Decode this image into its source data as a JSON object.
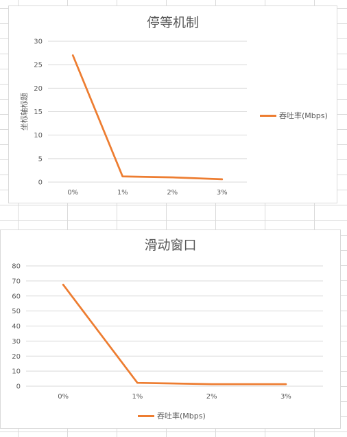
{
  "colors": {
    "series": "#ED7D31",
    "grid": "#d9d9d9",
    "text": "#595959"
  },
  "chart_data": [
    {
      "type": "line",
      "title": "停等机制",
      "ylabel": "坐标轴标题",
      "categories": [
        "0%",
        "1%",
        "2%",
        "3%"
      ],
      "yticks": [
        0,
        5,
        10,
        15,
        20,
        25,
        30
      ],
      "ylim": [
        0,
        30
      ],
      "grid": true,
      "legend_position": "right",
      "series": [
        {
          "name": "吞吐率(Mbps)",
          "values": [
            27,
            1.2,
            1.0,
            0.6
          ]
        }
      ]
    },
    {
      "type": "line",
      "title": "滑动窗口",
      "ylabel": "",
      "categories": [
        "0%",
        "1%",
        "2%",
        "3%"
      ],
      "yticks": [
        0,
        10,
        20,
        30,
        40,
        50,
        60,
        70,
        80
      ],
      "ylim": [
        0,
        80
      ],
      "grid": true,
      "legend_position": "bottom",
      "series": [
        {
          "name": "吞吐率(Mbps)",
          "values": [
            67.5,
            2.2,
            1.3,
            1.3
          ]
        }
      ]
    }
  ]
}
